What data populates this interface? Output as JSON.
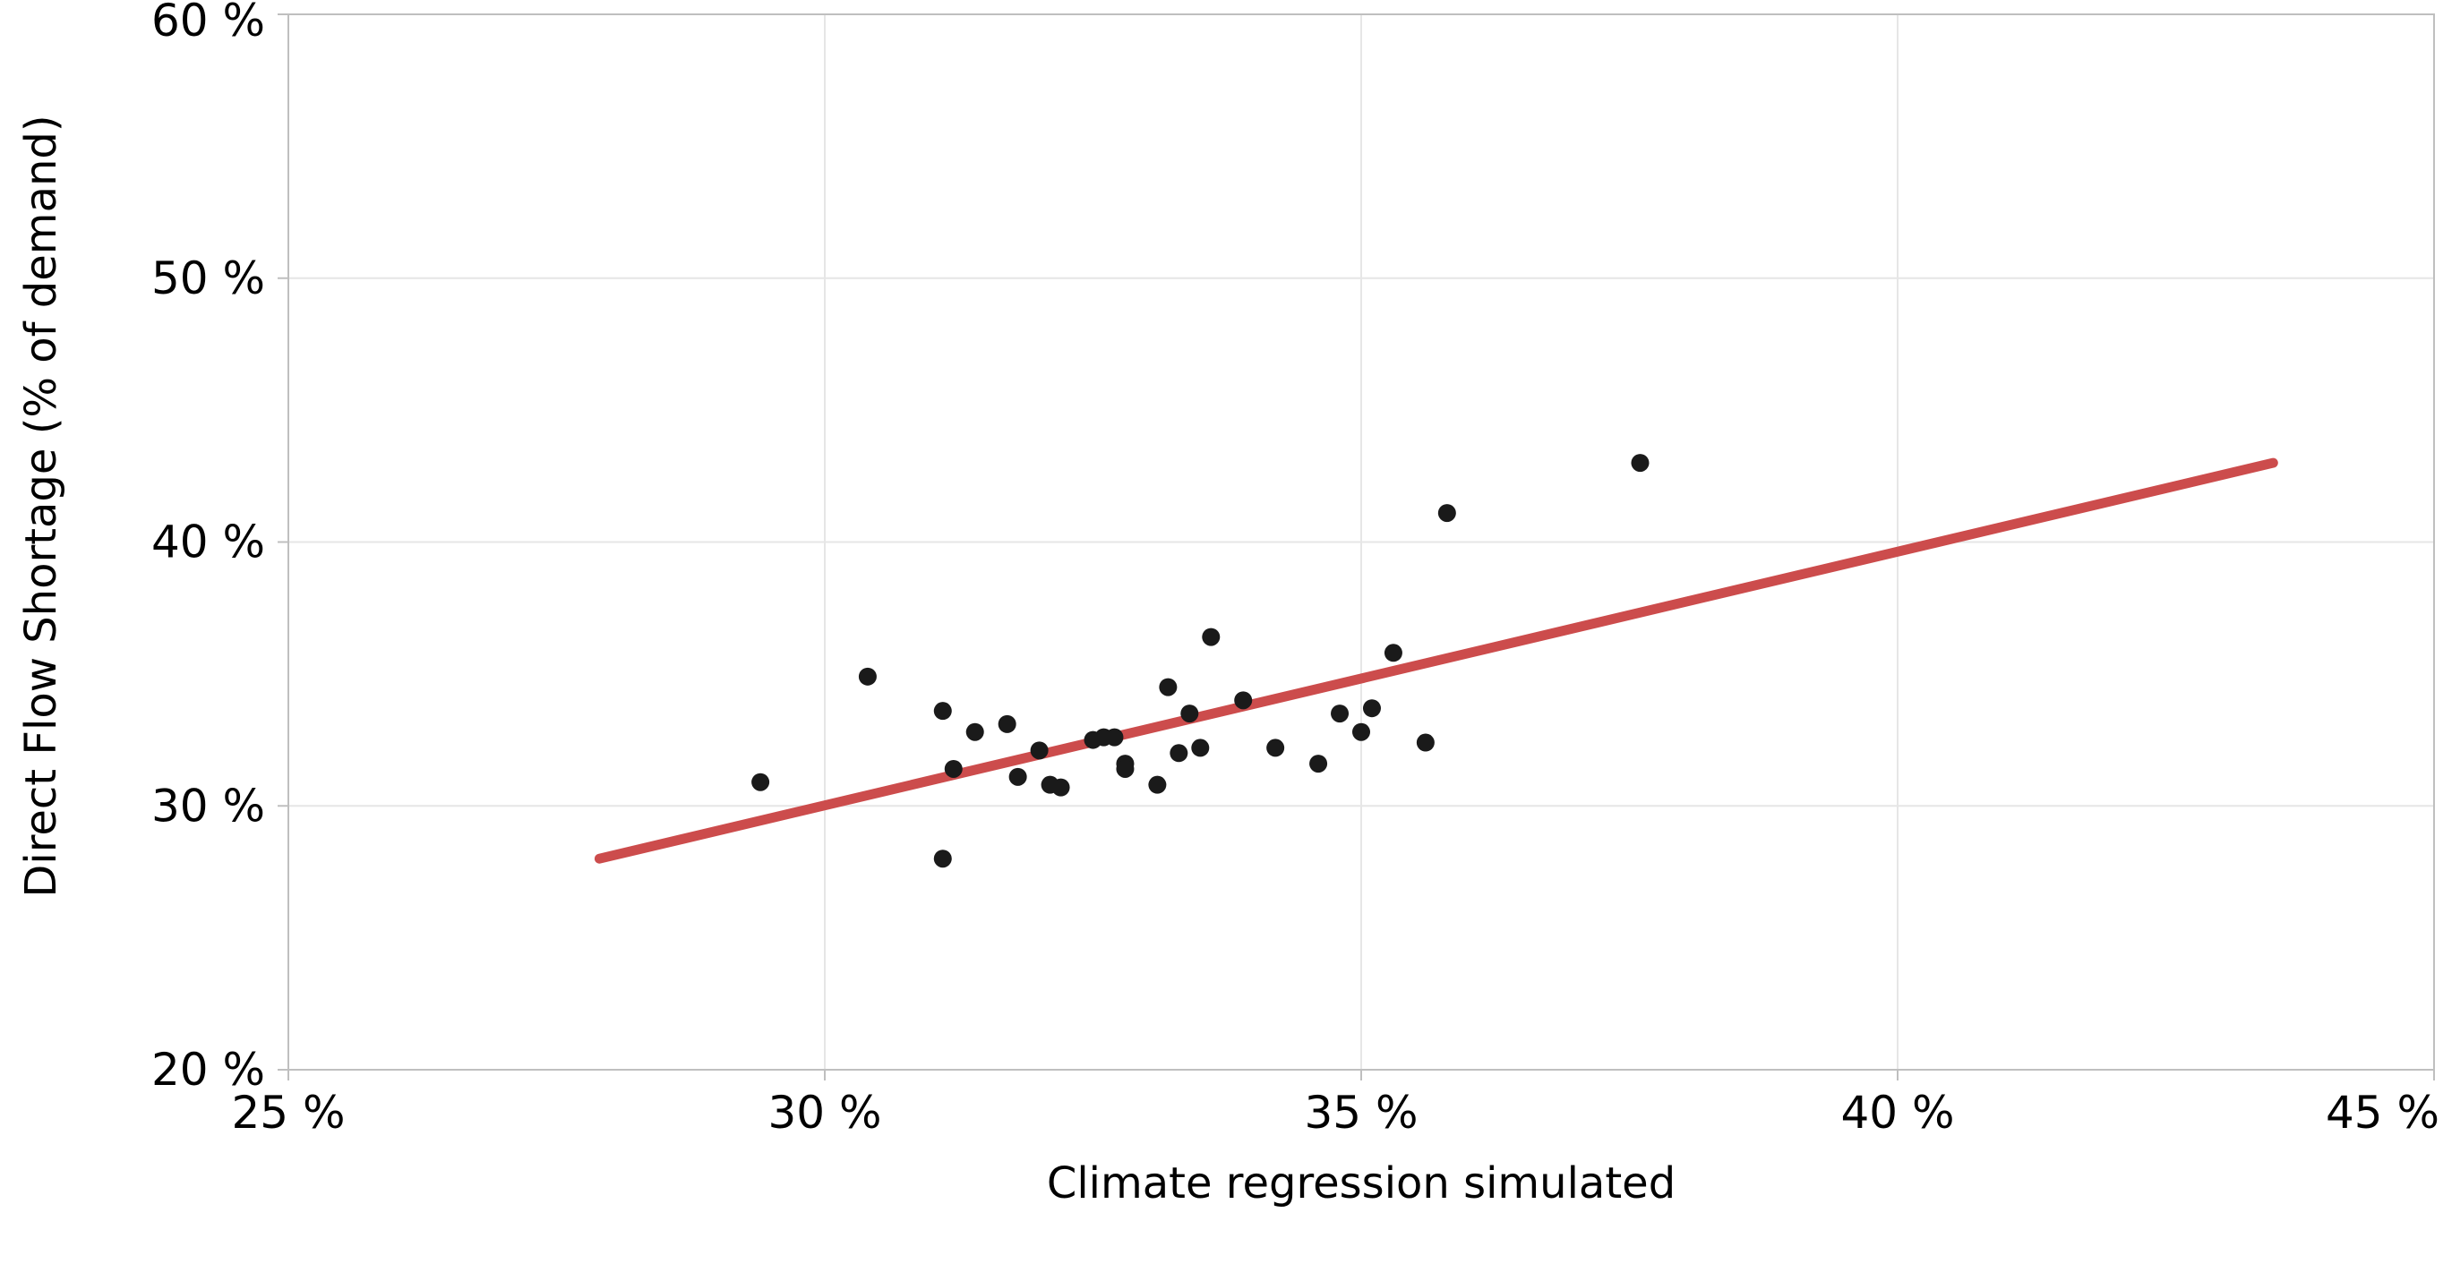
{
  "chart_data": {
    "type": "scatter",
    "title": "",
    "xlabel": "Climate regression simulated",
    "ylabel": "Direct Flow Shortage (% of demand)",
    "xlim": [
      25,
      45
    ],
    "ylim": [
      20,
      60
    ],
    "x_ticks": [
      25,
      30,
      35,
      40,
      45
    ],
    "y_ticks": [
      20,
      30,
      40,
      50,
      60
    ],
    "x_tick_labels": [
      "25 %",
      "30 %",
      "35 %",
      "40 %",
      "45 %"
    ],
    "y_tick_labels": [
      "20 %",
      "30 %",
      "40 %",
      "50 %",
      "60 %"
    ],
    "grid": true,
    "legend": "none",
    "colors": {
      "points": "#1a1a1a",
      "trendline": "#cc4c4c",
      "grid": "#e6e6e6",
      "axis": "#bfbfbf"
    },
    "points": [
      {
        "x": 29.4,
        "y": 30.9
      },
      {
        "x": 30.4,
        "y": 34.9
      },
      {
        "x": 31.1,
        "y": 33.6
      },
      {
        "x": 31.1,
        "y": 28.0
      },
      {
        "x": 31.2,
        "y": 31.4
      },
      {
        "x": 31.4,
        "y": 32.8
      },
      {
        "x": 31.7,
        "y": 33.1
      },
      {
        "x": 31.8,
        "y": 31.1
      },
      {
        "x": 32.0,
        "y": 32.1
      },
      {
        "x": 32.1,
        "y": 30.8
      },
      {
        "x": 32.2,
        "y": 30.7
      },
      {
        "x": 32.5,
        "y": 32.5
      },
      {
        "x": 32.6,
        "y": 32.6
      },
      {
        "x": 32.7,
        "y": 32.6
      },
      {
        "x": 32.8,
        "y": 31.6
      },
      {
        "x": 32.8,
        "y": 31.4
      },
      {
        "x": 33.1,
        "y": 30.8
      },
      {
        "x": 33.2,
        "y": 34.5
      },
      {
        "x": 33.3,
        "y": 32.0
      },
      {
        "x": 33.4,
        "y": 33.5
      },
      {
        "x": 33.5,
        "y": 32.2
      },
      {
        "x": 33.6,
        "y": 36.4
      },
      {
        "x": 33.9,
        "y": 34.0
      },
      {
        "x": 34.2,
        "y": 32.2
      },
      {
        "x": 34.6,
        "y": 31.6
      },
      {
        "x": 34.8,
        "y": 33.5
      },
      {
        "x": 35.0,
        "y": 32.8
      },
      {
        "x": 35.1,
        "y": 33.7
      },
      {
        "x": 35.3,
        "y": 35.8
      },
      {
        "x": 35.6,
        "y": 32.4
      },
      {
        "x": 35.8,
        "y": 41.1
      },
      {
        "x": 37.6,
        "y": 43.0
      }
    ],
    "trendline": {
      "x": [
        27.9,
        43.5
      ],
      "y": [
        28.0,
        43.0
      ]
    }
  }
}
